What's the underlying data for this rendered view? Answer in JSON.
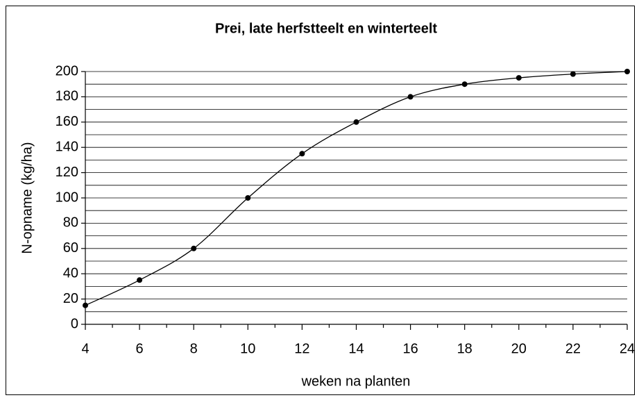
{
  "chart_data": {
    "type": "line",
    "title": "Prei, late herfstteelt en winterteelt",
    "x_label": "weken na planten",
    "y_label": "N-opname (kg/ha)",
    "x": [
      4,
      6,
      8,
      10,
      12,
      14,
      16,
      18,
      20,
      22,
      24
    ],
    "series": [
      {
        "name": "N-opname",
        "color": "#000000",
        "values": [
          15,
          35,
          60,
          100,
          135,
          160,
          180,
          190,
          195,
          198,
          200
        ]
      }
    ],
    "xlim": [
      4,
      24
    ],
    "xticks": [
      4,
      6,
      8,
      10,
      12,
      14,
      16,
      18,
      20,
      22,
      24
    ],
    "x_minor_ticks": [
      5,
      7,
      9,
      11,
      13,
      15,
      17,
      19,
      21,
      23
    ],
    "ylim": [
      0,
      200
    ],
    "yticks": [
      0,
      20,
      40,
      60,
      80,
      100,
      120,
      140,
      160,
      180,
      200
    ],
    "y_minor_ticks": [
      10,
      30,
      50,
      70,
      90,
      110,
      130,
      150,
      170,
      190
    ],
    "grid": true,
    "smooth": true,
    "markers": true
  }
}
